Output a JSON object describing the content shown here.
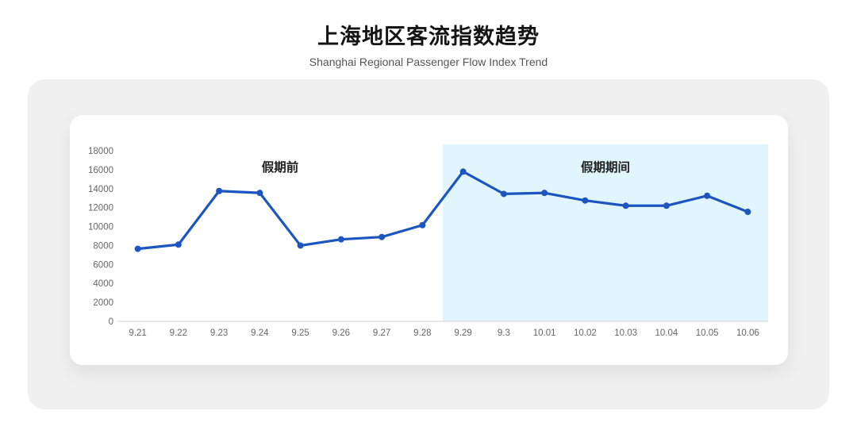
{
  "header": {
    "title": "上海地区客流指数趋势",
    "subtitle": "Shanghai Regional Passenger Flow Index Trend"
  },
  "colors": {
    "line": "#1c55c0",
    "highlight_fill": "#e0f6fc",
    "panel_bg": "#f0f0f0",
    "card_bg": "#ffffff",
    "axis_line": "#d4d4d4",
    "tick_text": "#666666",
    "annotation_text": "#1f1f1f"
  },
  "chart_data": {
    "type": "line",
    "title": "上海地区客流指数趋势",
    "subtitle": "Shanghai Regional Passenger Flow Index Trend",
    "categories": [
      "9.21",
      "9.22",
      "9.23",
      "9.24",
      "9.25",
      "9.26",
      "9.27",
      "9.28",
      "9.29",
      "9.3",
      "10.01",
      "10.02",
      "10.03",
      "10.04",
      "10.05",
      "10.06"
    ],
    "values": [
      7650,
      8100,
      13750,
      13550,
      8000,
      8650,
      8900,
      10150,
      15800,
      13450,
      13550,
      12750,
      12200,
      12200,
      13250,
      11550
    ],
    "xlabel": "",
    "ylabel": "",
    "ylim": [
      0,
      18000
    ],
    "ytick_step": 2000,
    "grid": false,
    "legend": "none",
    "line_color": "#1c55c0",
    "highlight": {
      "from": "9.29",
      "to": "10.06",
      "color": "#e0f6fc"
    },
    "annotations": [
      {
        "label": "假期前",
        "region": "before-highlight"
      },
      {
        "label": "假期期间",
        "region": "highlight"
      }
    ]
  }
}
